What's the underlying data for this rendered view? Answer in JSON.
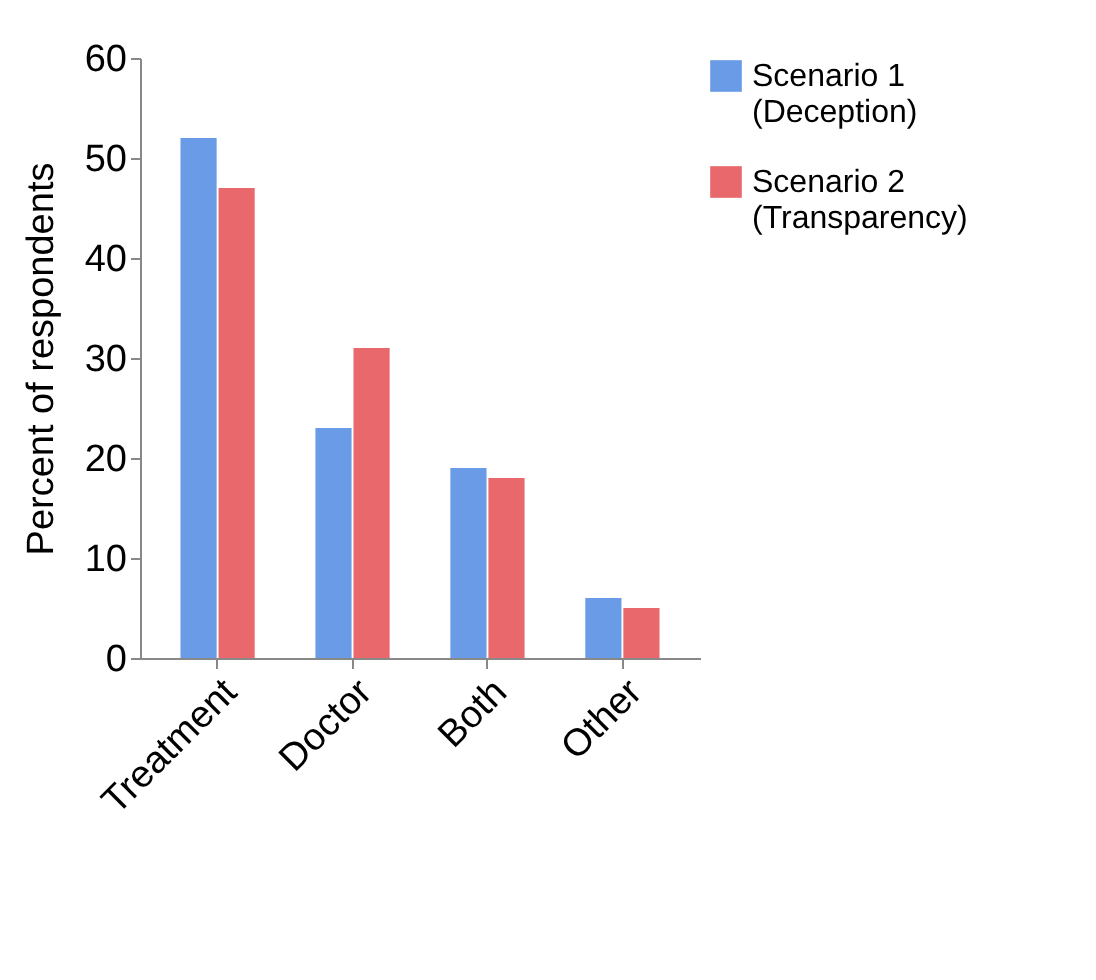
{
  "chart_data": {
    "type": "bar",
    "ylabel": "Percent of respondents",
    "categories": [
      "Treatment",
      "Doctor",
      "Both",
      "Other"
    ],
    "series": [
      {
        "name": "Scenario 1 (Deception)",
        "color": "#6a9be6",
        "values": [
          52,
          23,
          19,
          6
        ]
      },
      {
        "name": "Scenario 2 (Transparency)",
        "color": "#e8686c",
        "values": [
          47,
          31,
          18,
          5
        ]
      }
    ],
    "ylim": [
      0,
      60
    ],
    "yticks": [
      0,
      10,
      20,
      30,
      40,
      50,
      60
    ],
    "grid": false,
    "legend": "right"
  }
}
